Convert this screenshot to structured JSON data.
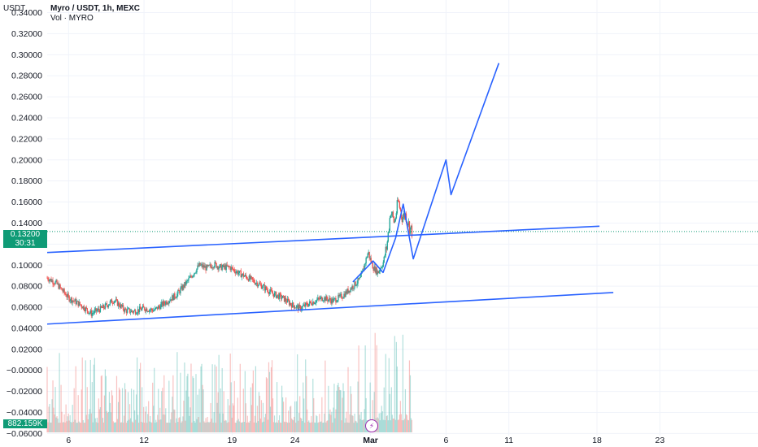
{
  "header": {
    "title": "Myro / USDT, 1h, MEXC",
    "volume_label": "Vol · MYRO"
  },
  "axis": {
    "currency": "USDT"
  },
  "price_badge": {
    "price": "0.13200",
    "countdown": "30:31",
    "color": "#0f9b76"
  },
  "volume_badge": {
    "value": "882.159K",
    "color": "#0f9b76"
  },
  "icons": {
    "event_marker": "lightning-icon"
  },
  "colors": {
    "up": "#26a69a",
    "down": "#ef5350",
    "drawing": "#2962ff",
    "current_price_line": "#0f9b76",
    "grid": "#f0f3fa"
  },
  "chart_data": {
    "type": "candlestick",
    "title": "Myro / USDT, 1h, MEXC",
    "y_ticks": [
      "0.34000",
      "0.32000",
      "0.30000",
      "0.28000",
      "0.26000",
      "0.24000",
      "0.22000",
      "0.20000",
      "0.18000",
      "0.16000",
      "0.14000",
      "0.12000",
      "0.10000",
      "0.08000",
      "0.06000",
      "0.04000",
      "0.02000",
      "−0.00000",
      "−0.02000",
      "−0.04000",
      "−0.06000"
    ],
    "y_tick_values": [
      0.34,
      0.32,
      0.3,
      0.28,
      0.26,
      0.24,
      0.22,
      0.2,
      0.18,
      0.16,
      0.14,
      0.12,
      0.1,
      0.08,
      0.06,
      0.04,
      0.02,
      0.0,
      -0.02,
      -0.04,
      -0.06
    ],
    "ylim": [
      -0.062,
      0.352
    ],
    "x_ticks": [
      "6",
      "12",
      "19",
      "24",
      "Mar",
      "6",
      "11",
      "18",
      "23"
    ],
    "x_tick_days": [
      6,
      12,
      19,
      24,
      30,
      36,
      41,
      48,
      53
    ],
    "xlim_days": [
      4.3,
      60.8
    ],
    "current_price": 0.132,
    "price_path": [
      [
        4.3,
        0.088
      ],
      [
        5.0,
        0.083
      ],
      [
        6.0,
        0.069
      ],
      [
        7.0,
        0.062
      ],
      [
        7.8,
        0.054
      ],
      [
        8.8,
        0.06
      ],
      [
        9.6,
        0.067
      ],
      [
        10.5,
        0.057
      ],
      [
        11.2,
        0.056
      ],
      [
        12.0,
        0.059
      ],
      [
        12.8,
        0.057
      ],
      [
        13.6,
        0.064
      ],
      [
        14.6,
        0.072
      ],
      [
        15.6,
        0.087
      ],
      [
        16.4,
        0.1
      ],
      [
        17.0,
        0.097
      ],
      [
        17.6,
        0.101
      ],
      [
        18.0,
        0.098
      ],
      [
        18.8,
        0.098
      ],
      [
        19.6,
        0.092
      ],
      [
        20.4,
        0.087
      ],
      [
        21.4,
        0.08
      ],
      [
        22.2,
        0.073
      ],
      [
        23.0,
        0.069
      ],
      [
        23.8,
        0.062
      ],
      [
        24.4,
        0.059
      ],
      [
        25.2,
        0.064
      ],
      [
        26.2,
        0.069
      ],
      [
        27.0,
        0.066
      ],
      [
        27.8,
        0.071
      ],
      [
        28.6,
        0.08
      ],
      [
        29.2,
        0.087
      ],
      [
        29.8,
        0.112
      ],
      [
        30.2,
        0.098
      ],
      [
        30.6,
        0.093
      ],
      [
        31.0,
        0.102
      ],
      [
        31.3,
        0.118
      ],
      [
        31.6,
        0.152
      ],
      [
        31.9,
        0.14
      ],
      [
        32.2,
        0.161
      ],
      [
        32.5,
        0.146
      ],
      [
        32.8,
        0.148
      ],
      [
        33.1,
        0.136
      ],
      [
        33.3,
        0.132
      ]
    ],
    "volume": {
      "min": 0,
      "max": 0.06,
      "last_value": "882.159K"
    },
    "drawings": [
      {
        "name": "channel-upper-line",
        "points": [
          [
            4.3,
            0.112
          ],
          [
            48.2,
            0.137
          ]
        ]
      },
      {
        "name": "channel-lower-line",
        "points": [
          [
            4.3,
            0.044
          ],
          [
            49.3,
            0.074
          ]
        ]
      },
      {
        "name": "projection-path",
        "points": [
          [
            28.6,
            0.084
          ],
          [
            30.2,
            0.104
          ],
          [
            31.0,
            0.093
          ],
          [
            32.0,
            0.126
          ],
          [
            32.6,
            0.158
          ],
          [
            33.4,
            0.106
          ],
          [
            36.0,
            0.2
          ],
          [
            36.4,
            0.167
          ],
          [
            40.2,
            0.292
          ]
        ]
      }
    ]
  }
}
